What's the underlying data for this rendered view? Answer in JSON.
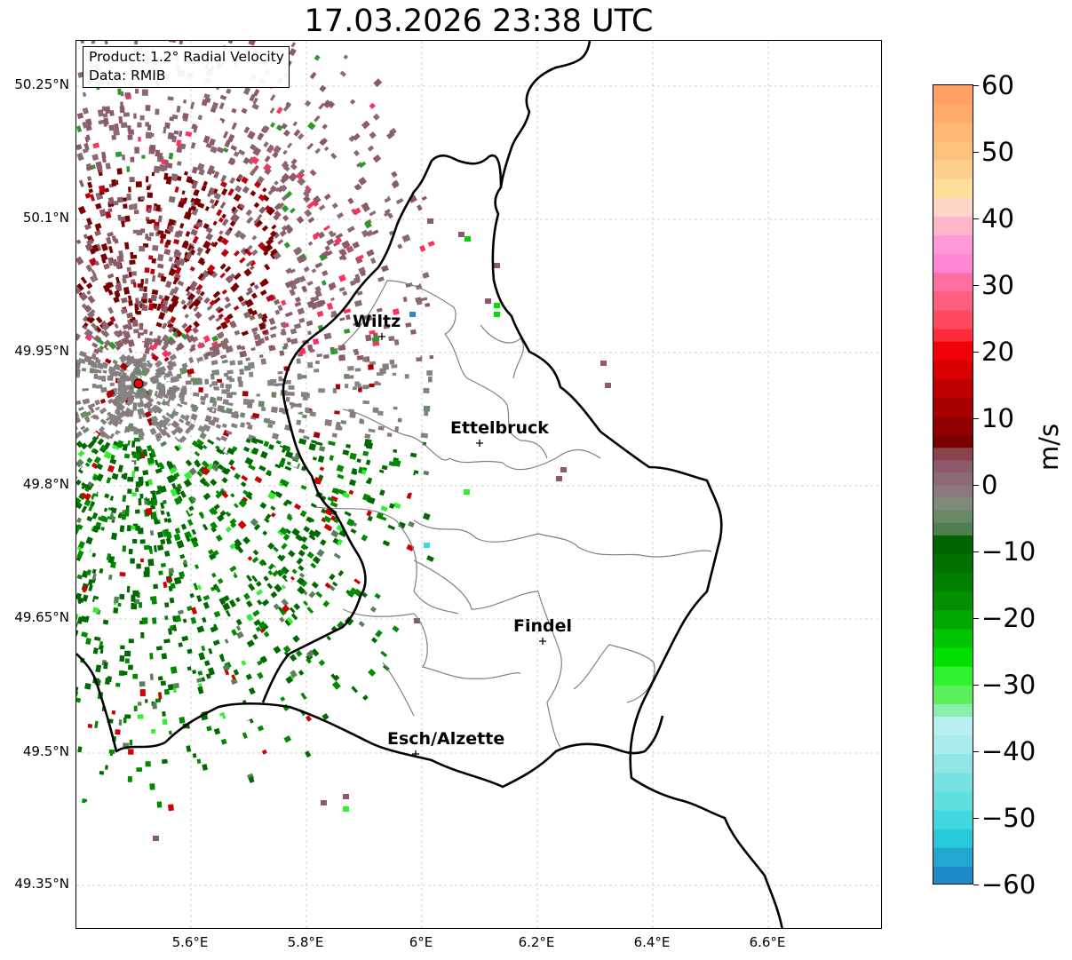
{
  "title": "17.03.2026 23:38 UTC",
  "info": {
    "product": "Product: 1.2° Radial Velocity",
    "data_source": "Data: RMIB"
  },
  "axes": {
    "lat_labels": [
      "50.25°N",
      "50.1°N",
      "49.95°N",
      "49.8°N",
      "49.65°N",
      "49.5°N",
      "49.35°N"
    ],
    "lon_labels": [
      "5.6°E",
      "5.8°E",
      "6°E",
      "6.2°E",
      "6.4°E",
      "6.6°E"
    ]
  },
  "cities": [
    {
      "name": "Wiltz"
    },
    {
      "name": "Ettelbruck"
    },
    {
      "name": "Findel"
    },
    {
      "name": "Esch/Alzette"
    }
  ],
  "radar_marker": {
    "color": "#ff0000"
  },
  "colorbar": {
    "unit": "m/s",
    "ticks": [
      "60",
      "50",
      "40",
      "30",
      "20",
      "10",
      "0",
      "−10",
      "−20",
      "−30",
      "−40",
      "−50",
      "−60"
    ],
    "range": [
      -60,
      60
    ]
  }
}
